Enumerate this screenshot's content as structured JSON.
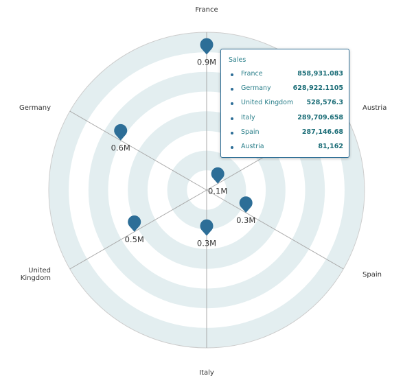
{
  "chart_data": {
    "type": "radar",
    "categories": [
      "France",
      "Austria",
      "Spain",
      "Italy",
      "United Kingdom",
      "Germany"
    ],
    "category_labels": [
      "France",
      "Austria",
      "Spain",
      "Italy",
      "United\nKingdom",
      "Germany"
    ],
    "series": [
      {
        "name": "Sales",
        "color": "#2d6e97",
        "values": [
          858931.083,
          81162,
          287146.68,
          289709.658,
          528576.3,
          628922.1105
        ],
        "data_labels": [
          "0.9M",
          "0.1M",
          "0.3M",
          "0.3M",
          "0.5M",
          "0.6M"
        ]
      }
    ],
    "range": [
      0,
      1000000
    ],
    "band_color": "#e3eef0",
    "grid_color": "#cccccc"
  },
  "tooltip": {
    "title": "Sales",
    "rows": [
      {
        "name": "France",
        "value": "858,931.083"
      },
      {
        "name": "Germany",
        "value": "628,922.1105"
      },
      {
        "name": "United Kingdom",
        "value": "528,576.3"
      },
      {
        "name": "Italy",
        "value": "289,709.658"
      },
      {
        "name": "Spain",
        "value": "287,146.68"
      },
      {
        "name": "Austria",
        "value": "81,162"
      }
    ]
  }
}
